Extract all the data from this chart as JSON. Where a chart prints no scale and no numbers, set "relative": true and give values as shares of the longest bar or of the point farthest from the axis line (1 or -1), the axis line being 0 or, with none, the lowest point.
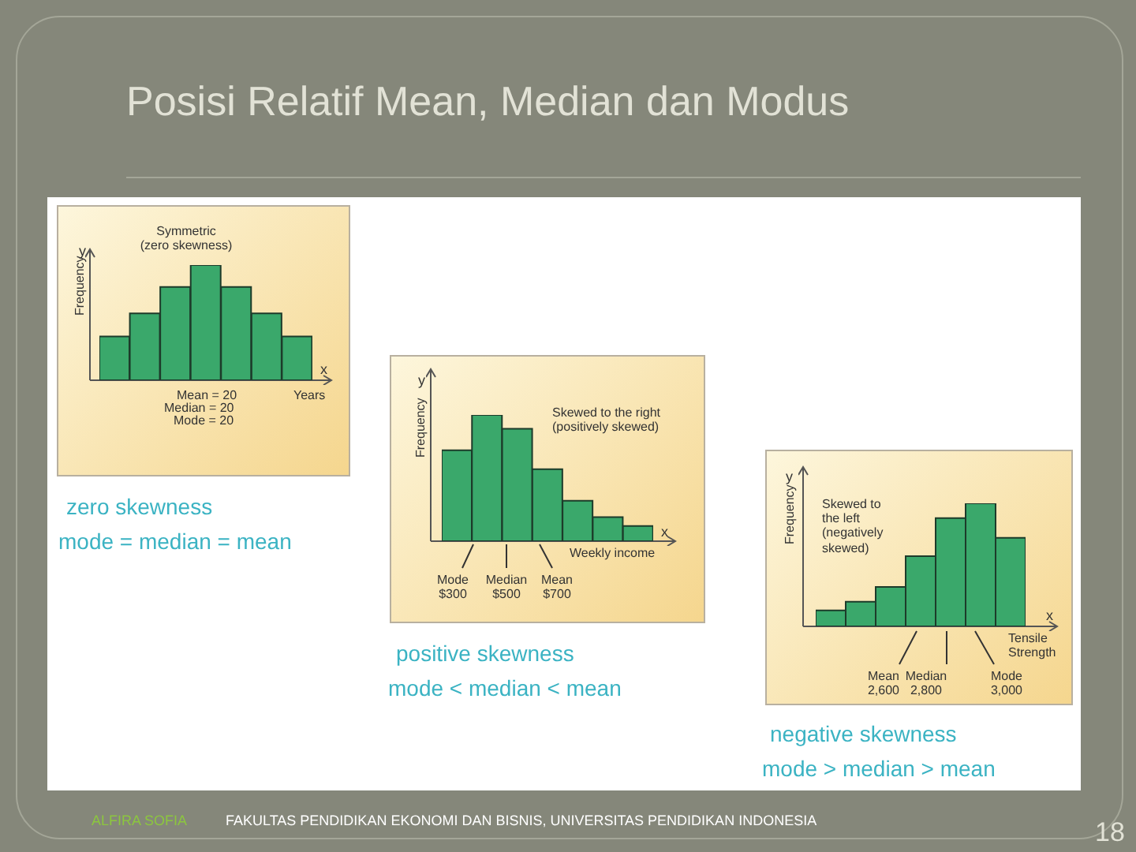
{
  "chart_data": [
    {
      "type": "bar",
      "relative": true,
      "title": "Symmetric\n(zero skewness)",
      "ylabel": "Frequency",
      "xlabel": "Years",
      "categories": [
        null,
        null,
        null,
        null,
        null,
        null,
        null
      ],
      "values": [
        0.38,
        0.58,
        0.81,
        1,
        0.81,
        0.58,
        0.38
      ],
      "color": "#3aa86b",
      "annotations": [
        "y",
        "x",
        "Mean = 20",
        "Median = 20",
        "Mode = 20",
        "zero skewness",
        "mode = median = mean",
        "Posisi Relatif Mean, Median dan Modus",
        "ALFIRA SOFIA",
        "FAKULTAS PENDIDIKAN EKONOMI DAN BISNIS, UNIVERSITAS PENDIDIKAN INDONESIA",
        "18"
      ]
    },
    {
      "type": "bar",
      "relative": true,
      "title": "Skewed to the right\n(positively skewed)",
      "ylabel": "Frequency",
      "xlabel": "Weekly income",
      "categories": [
        null,
        null,
        null,
        null,
        null,
        null,
        null
      ],
      "values": [
        0.72,
        1,
        0.89,
        0.57,
        0.32,
        0.19,
        0.12
      ],
      "color": "#3aa86b",
      "annotations": [
        "y",
        "x",
        "Mode\n$300",
        "Median\n$500",
        "Mean\n$700",
        "positive skewness",
        "mode < median < mean"
      ]
    },
    {
      "type": "bar",
      "relative": true,
      "title": "Skewed to\nthe left\n(negatively\nskewed)",
      "ylabel": "Frequency",
      "xlabel": "Tensile\nStrength",
      "categories": [
        null,
        null,
        null,
        null,
        null,
        null,
        null
      ],
      "values": [
        0.13,
        0.2,
        0.32,
        0.57,
        0.88,
        1,
        0.72
      ],
      "color": "#3aa86b",
      "annotations": [
        "y",
        "x",
        "Mean\n2,600",
        "Median\n2,800",
        "Mode\n3,000",
        "negative skewness",
        "mode > median > mean"
      ]
    }
  ]
}
